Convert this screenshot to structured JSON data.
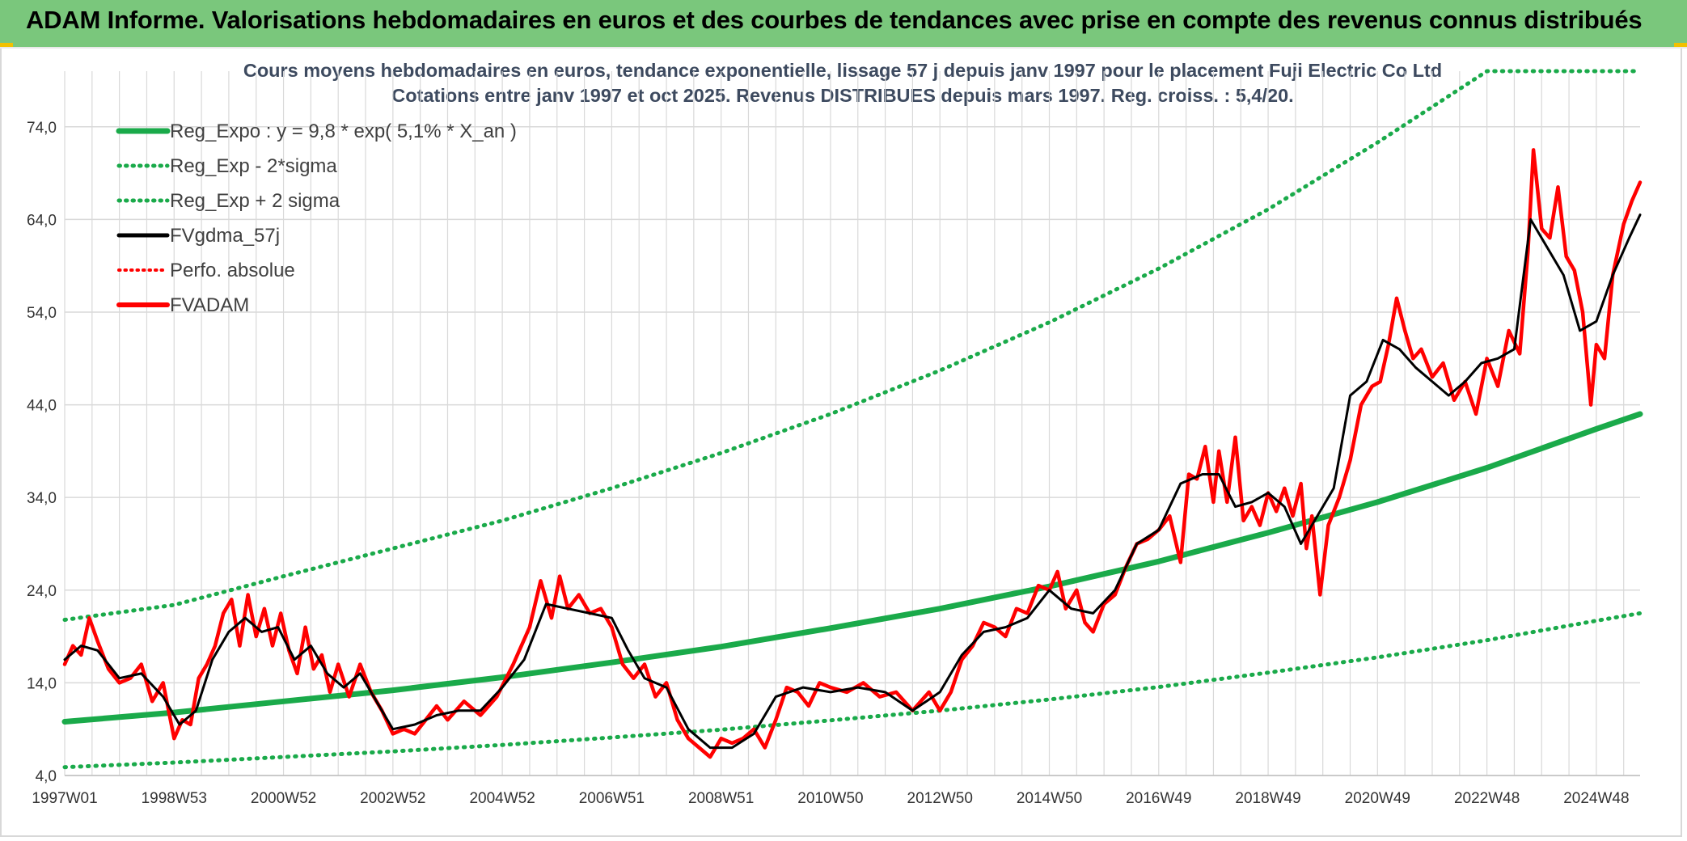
{
  "banner": {
    "title": "ADAM Informe. Valorisations hebdomadaires en euros et des courbes de tendances avec prise en compte des revenus connus distribués"
  },
  "colors": {
    "banner_bg": "#7ac77c",
    "reg_green": "#1aaa4a",
    "price_red": "#ff0000",
    "smooth_black": "#000000",
    "grid": "#d9d9d9"
  },
  "chart_data": {
    "type": "line",
    "title_line1": "Cours moyens hebdomadaires en euros, tendance exponentielle, lissage 57 j depuis janv 1997 pour le placement Fuji Electric Co Ltd",
    "title_line2": "Cotations entre janv 1997 et oct 2025. Revenus DISTRIBUES depuis mars 1997. Reg. croiss. : 5,4/20.",
    "xlabel": "",
    "ylabel": "",
    "ylim": [
      4,
      80
    ],
    "xlim": [
      1997.0,
      2025.8
    ],
    "grid": true,
    "legend_position": "top-left",
    "y_ticks": [
      "4,0",
      "14,0",
      "24,0",
      "34,0",
      "44,0",
      "54,0",
      "64,0",
      "74,0"
    ],
    "y_tick_values": [
      4,
      14,
      24,
      34,
      44,
      54,
      64,
      74
    ],
    "x_ticks": [
      "1997W01",
      "1998W53",
      "2000W52",
      "2002W52",
      "2004W52",
      "2006W51",
      "2008W51",
      "2010W50",
      "2012W50",
      "2014W50",
      "2016W49",
      "2018W49",
      "2020W49",
      "2022W48",
      "2024W48"
    ],
    "x_tick_values": [
      1997.0,
      1999.0,
      2001.0,
      2003.0,
      2005.0,
      2007.0,
      2009.0,
      2011.0,
      2013.0,
      2015.0,
      2017.0,
      2019.0,
      2021.0,
      2023.0,
      2025.0
    ],
    "legend": [
      {
        "label": "Reg_Expo : y = 9,8 * exp( 5,1% *  X_an )",
        "style": "solid-green-thick"
      },
      {
        "label": "Reg_Exp - 2*sigma",
        "style": "dotted-green"
      },
      {
        "label": "Reg_Exp + 2 sigma",
        "style": "dotted-green"
      },
      {
        "label": "FVgdma_57j",
        "style": "solid-black"
      },
      {
        "label": "Perfo. absolue",
        "style": "dotted-red"
      },
      {
        "label": "FVADAM",
        "style": "solid-red"
      }
    ],
    "series": [
      {
        "name": "Reg_Expo : y = 9,8 * exp( 5,1% *  X_an )",
        "x": [
          1997.0,
          1999.0,
          2001.0,
          2003.0,
          2005.0,
          2007.0,
          2009.0,
          2011.0,
          2013.0,
          2015.0,
          2017.0,
          2019.0,
          2021.0,
          2023.0,
          2025.0,
          2025.8
        ],
        "values": [
          9.8,
          10.8,
          12.0,
          13.2,
          14.6,
          16.2,
          17.9,
          19.9,
          22.0,
          24.4,
          27.1,
          30.2,
          33.5,
          37.2,
          41.4,
          43.0
        ]
      },
      {
        "name": "Reg_Exp - 2*sigma",
        "x": [
          1997.0,
          1999.0,
          2001.0,
          2003.0,
          2005.0,
          2007.0,
          2009.0,
          2011.0,
          2013.0,
          2015.0,
          2017.0,
          2019.0,
          2021.0,
          2023.0,
          2025.0,
          2025.8
        ],
        "values": [
          4.9,
          5.4,
          6.0,
          6.6,
          7.3,
          8.1,
          8.95,
          9.95,
          11.0,
          12.2,
          13.55,
          15.1,
          16.75,
          18.6,
          20.7,
          21.5
        ]
      },
      {
        "name": "Reg_Exp + 2 sigma",
        "x": [
          1997.0,
          1999.0,
          2001.0,
          2003.0,
          2005.0,
          2007.0,
          2009.0,
          2011.0,
          2013.0,
          2015.0,
          2017.0,
          2019.0,
          2021.0,
          2023.0,
          2023.35,
          2025.8
        ],
        "values": [
          20.8,
          22.4,
          25.5,
          28.5,
          31.5,
          35.0,
          38.8,
          43.0,
          47.7,
          52.9,
          58.7,
          65.1,
          72.3,
          80.0,
          80.0,
          80.0
        ]
      },
      {
        "name": "FVgdma_57j",
        "x": [
          1997.0,
          1997.3,
          1997.6,
          1998.0,
          1998.4,
          1998.8,
          1999.1,
          1999.4,
          1999.7,
          2000.0,
          2000.3,
          2000.6,
          2000.9,
          2001.2,
          2001.5,
          2001.8,
          2002.1,
          2002.4,
          2002.7,
          2003.0,
          2003.4,
          2003.8,
          2004.2,
          2004.6,
          2005.0,
          2005.4,
          2005.8,
          2006.2,
          2006.6,
          2007.0,
          2007.3,
          2007.6,
          2008.0,
          2008.4,
          2008.8,
          2009.2,
          2009.6,
          2010.0,
          2010.5,
          2011.0,
          2011.5,
          2012.0,
          2012.5,
          2013.0,
          2013.4,
          2013.8,
          2014.2,
          2014.6,
          2015.0,
          2015.4,
          2015.8,
          2016.2,
          2016.6,
          2017.0,
          2017.4,
          2017.8,
          2018.1,
          2018.4,
          2018.7,
          2019.0,
          2019.3,
          2019.6,
          2019.9,
          2020.2,
          2020.5,
          2020.8,
          2021.1,
          2021.4,
          2021.7,
          2022.0,
          2022.3,
          2022.6,
          2022.9,
          2023.2,
          2023.5,
          2023.8,
          2024.1,
          2024.4,
          2024.7,
          2025.0,
          2025.3,
          2025.6,
          2025.8
        ],
        "values": [
          16.5,
          18.0,
          17.5,
          14.5,
          15.0,
          12.5,
          9.5,
          11.0,
          16.5,
          19.5,
          21.0,
          19.5,
          20.0,
          16.5,
          18.0,
          15.0,
          13.5,
          15.0,
          12.0,
          9.0,
          9.5,
          10.5,
          11.0,
          11.0,
          13.5,
          16.5,
          22.5,
          22.0,
          21.5,
          21.0,
          17.5,
          14.5,
          13.5,
          9.0,
          7.0,
          7.0,
          8.5,
          12.5,
          13.5,
          13.0,
          13.5,
          13.0,
          11.0,
          13.0,
          17.0,
          19.5,
          20.0,
          21.0,
          24.0,
          22.0,
          21.5,
          24.0,
          29.0,
          30.5,
          35.5,
          36.5,
          36.5,
          33.0,
          33.5,
          34.5,
          33.0,
          29.0,
          32.0,
          35.0,
          45.0,
          46.5,
          51.0,
          50.0,
          48.0,
          46.5,
          45.0,
          46.5,
          48.5,
          49.0,
          50.0,
          64.0,
          61.0,
          58.0,
          52.0,
          53.0,
          58.0,
          62.0,
          64.5
        ]
      },
      {
        "name": "FVADAM",
        "x": [
          1997.0,
          1997.15,
          1997.3,
          1997.45,
          1997.6,
          1997.8,
          1998.0,
          1998.2,
          1998.4,
          1998.6,
          1998.8,
          1999.0,
          1999.15,
          1999.3,
          1999.45,
          1999.6,
          1999.75,
          1999.9,
          2000.05,
          2000.2,
          2000.35,
          2000.5,
          2000.65,
          2000.8,
          2000.95,
          2001.1,
          2001.25,
          2001.4,
          2001.55,
          2001.7,
          2001.85,
          2002.0,
          2002.2,
          2002.4,
          2002.6,
          2002.8,
          2003.0,
          2003.2,
          2003.4,
          2003.6,
          2003.8,
          2004.0,
          2004.3,
          2004.6,
          2004.9,
          2005.2,
          2005.5,
          2005.7,
          2005.9,
          2006.05,
          2006.2,
          2006.4,
          2006.6,
          2006.8,
          2007.0,
          2007.2,
          2007.4,
          2007.6,
          2007.8,
          2008.0,
          2008.2,
          2008.4,
          2008.6,
          2008.8,
          2009.0,
          2009.2,
          2009.4,
          2009.6,
          2009.8,
          2010.0,
          2010.2,
          2010.4,
          2010.6,
          2010.8,
          2011.0,
          2011.3,
          2011.6,
          2011.9,
          2012.2,
          2012.5,
          2012.8,
          2013.0,
          2013.2,
          2013.4,
          2013.6,
          2013.8,
          2014.0,
          2014.2,
          2014.4,
          2014.6,
          2014.8,
          2015.0,
          2015.15,
          2015.3,
          2015.5,
          2015.65,
          2015.8,
          2016.0,
          2016.2,
          2016.4,
          2016.6,
          2016.8,
          2017.0,
          2017.2,
          2017.4,
          2017.55,
          2017.7,
          2017.85,
          2018.0,
          2018.1,
          2018.25,
          2018.4,
          2018.55,
          2018.7,
          2018.85,
          2019.0,
          2019.15,
          2019.3,
          2019.45,
          2019.6,
          2019.7,
          2019.8,
          2019.95,
          2020.1,
          2020.3,
          2020.5,
          2020.7,
          2020.9,
          2021.05,
          2021.2,
          2021.35,
          2021.5,
          2021.65,
          2021.8,
          2022.0,
          2022.2,
          2022.4,
          2022.6,
          2022.8,
          2023.0,
          2023.2,
          2023.4,
          2023.6,
          2023.75,
          2023.85,
          2024.0,
          2024.15,
          2024.3,
          2024.45,
          2024.6,
          2024.75,
          2024.9,
          2025.0,
          2025.15,
          2025.3,
          2025.5,
          2025.65,
          2025.8
        ],
        "values": [
          16.0,
          18.0,
          17.0,
          21.0,
          18.5,
          15.5,
          14.0,
          14.5,
          16.0,
          12.0,
          14.0,
          8.0,
          10.0,
          9.5,
          14.5,
          16.0,
          18.0,
          21.5,
          23.0,
          18.0,
          23.5,
          19.0,
          22.0,
          18.0,
          21.5,
          17.5,
          15.0,
          20.0,
          15.5,
          17.0,
          13.0,
          16.0,
          12.5,
          16.0,
          13.0,
          11.0,
          8.5,
          9.0,
          8.5,
          10.0,
          11.5,
          10.0,
          12.0,
          10.5,
          12.5,
          16.0,
          20.0,
          25.0,
          21.0,
          25.5,
          22.0,
          23.5,
          21.5,
          22.0,
          20.0,
          16.0,
          14.5,
          16.0,
          12.5,
          14.0,
          10.0,
          8.0,
          7.0,
          6.0,
          8.0,
          7.5,
          8.0,
          9.0,
          7.0,
          10.0,
          13.5,
          13.0,
          11.5,
          14.0,
          13.5,
          13.0,
          14.0,
          12.5,
          13.0,
          11.0,
          13.0,
          11.0,
          13.0,
          16.5,
          18.0,
          20.5,
          20.0,
          19.0,
          22.0,
          21.5,
          24.5,
          24.0,
          26.0,
          22.0,
          24.0,
          20.5,
          19.5,
          22.5,
          23.5,
          26.5,
          29.0,
          29.5,
          30.5,
          32.0,
          27.0,
          36.5,
          36.0,
          39.5,
          33.5,
          39.0,
          33.5,
          40.5,
          31.5,
          33.0,
          31.0,
          34.5,
          32.5,
          35.0,
          32.0,
          35.5,
          28.5,
          32.0,
          23.5,
          31.0,
          34.0,
          38.0,
          44.0,
          46.0,
          46.5,
          50.5,
          55.5,
          52.0,
          49.0,
          50.0,
          47.0,
          48.5,
          44.5,
          46.5,
          43.0,
          49.0,
          46.0,
          52.0,
          49.5,
          60.5,
          71.5,
          63.0,
          62.0,
          67.5,
          60.0,
          58.5,
          54.0,
          44.0,
          50.5,
          49.0,
          58.0,
          63.5,
          66.0,
          68.0
        ]
      }
    ]
  }
}
